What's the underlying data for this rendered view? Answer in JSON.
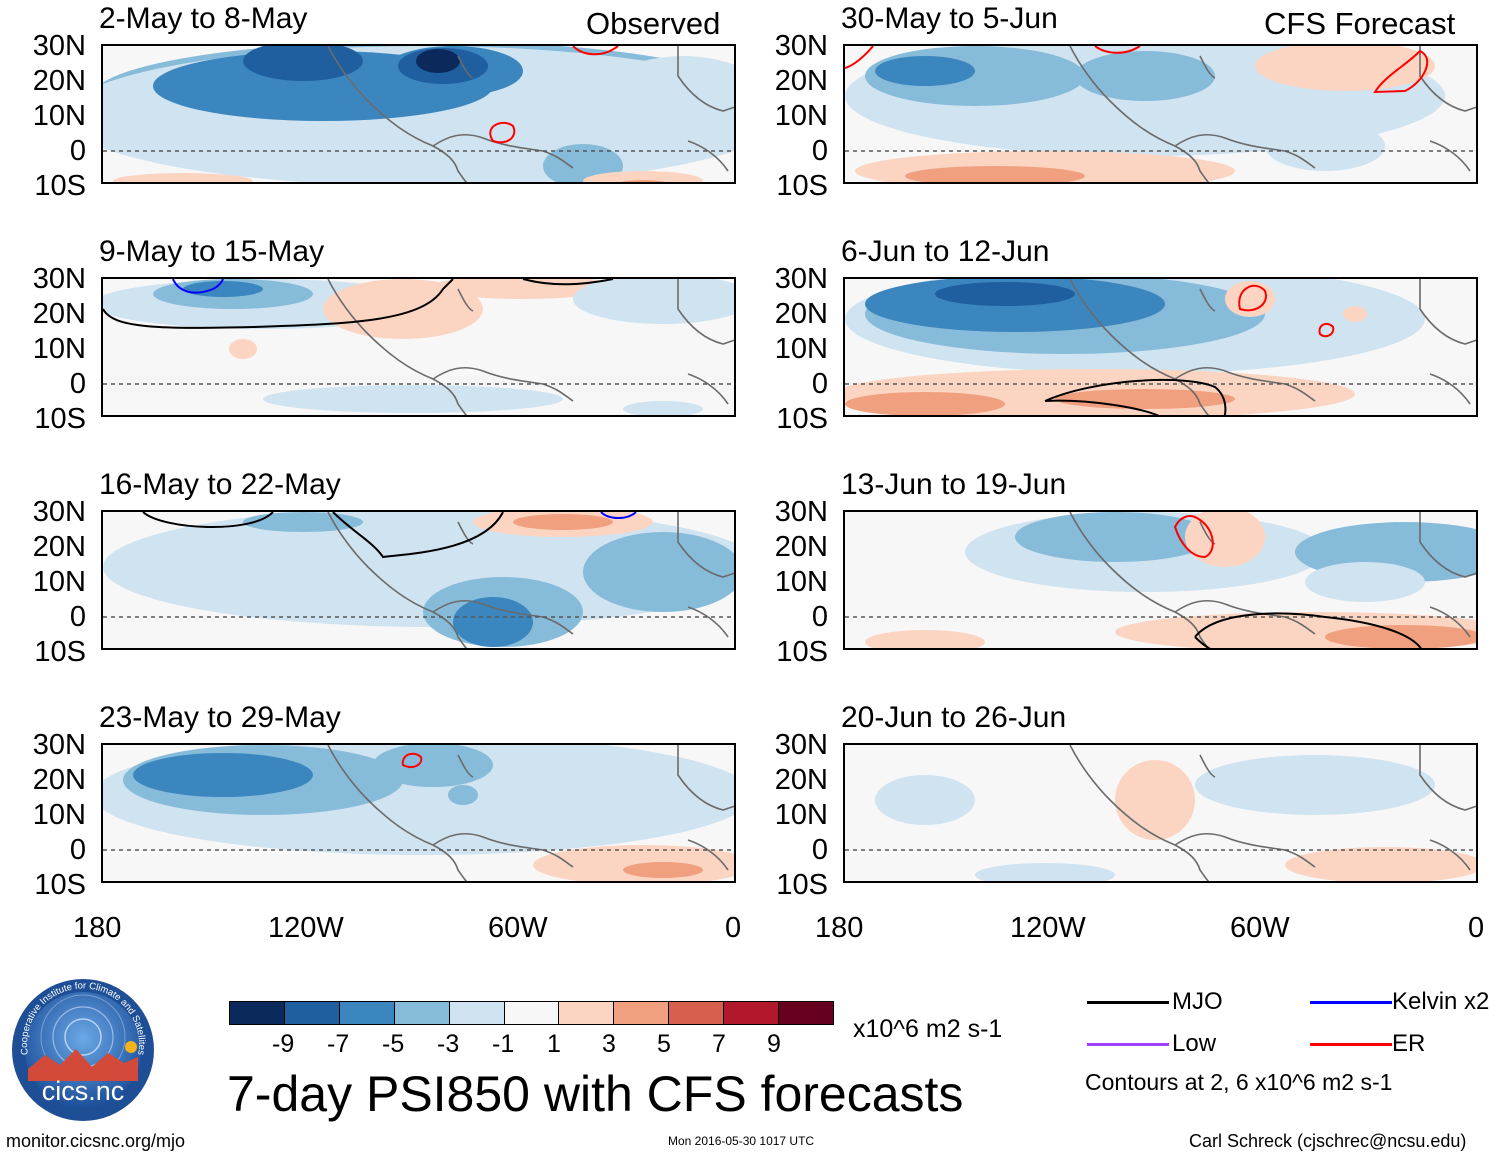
{
  "header": {
    "observed_label": "Observed",
    "forecast_label": "CFS Forecast"
  },
  "panels": [
    {
      "title": "2-May to 8-May",
      "column": "observed",
      "contours": [
        "ER"
      ]
    },
    {
      "title": "9-May to 15-May",
      "column": "observed",
      "contours": [
        "MJO",
        "Kelvin x2"
      ]
    },
    {
      "title": "16-May to 22-May",
      "column": "observed",
      "contours": [
        "MJO",
        "Kelvin x2"
      ]
    },
    {
      "title": "23-May to 29-May",
      "column": "observed",
      "contours": [
        "ER"
      ]
    },
    {
      "title": "30-May to 5-Jun",
      "column": "forecast",
      "contours": [
        "ER"
      ]
    },
    {
      "title": "6-Jun to 12-Jun",
      "column": "forecast",
      "contours": [
        "ER",
        "MJO"
      ]
    },
    {
      "title": "13-Jun to 19-Jun",
      "column": "forecast",
      "contours": [
        "ER",
        "MJO"
      ]
    },
    {
      "title": "20-Jun to 26-Jun",
      "column": "forecast",
      "contours": []
    }
  ],
  "axes": {
    "lat_labels": [
      "30N",
      "20N",
      "10N",
      "0",
      "10S"
    ],
    "lon_labels": [
      "180",
      "120W",
      "60W",
      "0"
    ]
  },
  "colorbar": {
    "labels": [
      "-9",
      "-7",
      "-5",
      "-3",
      "-1",
      "1",
      "3",
      "5",
      "7",
      "9"
    ],
    "colors": [
      "#0b2a5b",
      "#1f5fa0",
      "#3b86be",
      "#87bbda",
      "#cfe3f0",
      "#f7f7f7",
      "#fbd5c2",
      "#f0a07f",
      "#d6604d",
      "#b2182b",
      "#67001f"
    ],
    "units": "x10^6 m2 s-1"
  },
  "main_title": "7-day PSI850 with CFS forecasts",
  "legend": {
    "items": [
      {
        "label": "MJO",
        "color": "#000000"
      },
      {
        "label": "Kelvin x2",
        "color": "#0000ff"
      },
      {
        "label": "Low",
        "color": "#a040ff"
      },
      {
        "label": "ER",
        "color": "#ff0000"
      }
    ],
    "note": "Contours at 2, 6 x10^6 m2 s-1"
  },
  "logo": {
    "text": "cics.nc",
    "ring_text": "Cooperative Institute for Climate and Satellites"
  },
  "footer": {
    "url": "monitor.cicsnc.org/mjo",
    "timestamp": "Mon 2016-05-30 1017 UTC",
    "credit": "Carl Schreck (cjschrec@ncsu.edu)"
  }
}
